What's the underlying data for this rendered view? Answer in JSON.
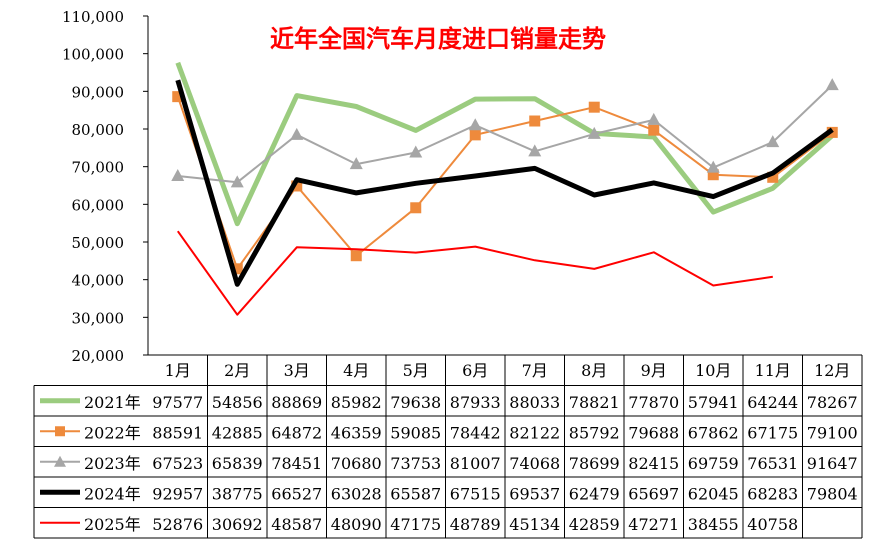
{
  "chart_data": {
    "type": "line",
    "title": "近年全国汽车月度进口销量走势",
    "title_color": "#ff0000",
    "categories": [
      "1月",
      "2月",
      "3月",
      "4月",
      "5月",
      "6月",
      "7月",
      "8月",
      "9月",
      "10月",
      "11月",
      "12月"
    ],
    "ylim": [
      20000,
      110000
    ],
    "yticks": [
      "20,000",
      "30,000",
      "40,000",
      "50,000",
      "60,000",
      "70,000",
      "80,000",
      "90,000",
      "100,000",
      "110,000"
    ],
    "grid": false,
    "legend": "data-table-left",
    "series": [
      {
        "name": "2021年",
        "color": "#9bcc7f",
        "marker": "none",
        "values": [
          97577,
          54856,
          88869,
          85982,
          79638,
          87933,
          88033,
          78821,
          77870,
          57941,
          64244,
          78267
        ]
      },
      {
        "name": "2022年",
        "color": "#ee8a3c",
        "marker": "square",
        "values": [
          88591,
          42885,
          64872,
          46359,
          59085,
          78442,
          82122,
          85792,
          79688,
          67862,
          67175,
          79100
        ]
      },
      {
        "name": "2023年",
        "color": "#a6a6a6",
        "marker": "triangle",
        "values": [
          67523,
          65839,
          78451,
          70680,
          73753,
          81007,
          74068,
          78699,
          82415,
          69759,
          76531,
          91647
        ]
      },
      {
        "name": "2024年",
        "color": "#000000",
        "marker": "none",
        "values": [
          92957,
          38775,
          66527,
          63028,
          65587,
          67515,
          69537,
          62479,
          65697,
          62045,
          68283,
          79804
        ]
      },
      {
        "name": "2025年",
        "color": "#ff0000",
        "marker": "none",
        "values": [
          52876,
          30692,
          48587,
          48090,
          47175,
          48789,
          45134,
          42859,
          47271,
          38455,
          40758,
          null
        ]
      }
    ]
  }
}
